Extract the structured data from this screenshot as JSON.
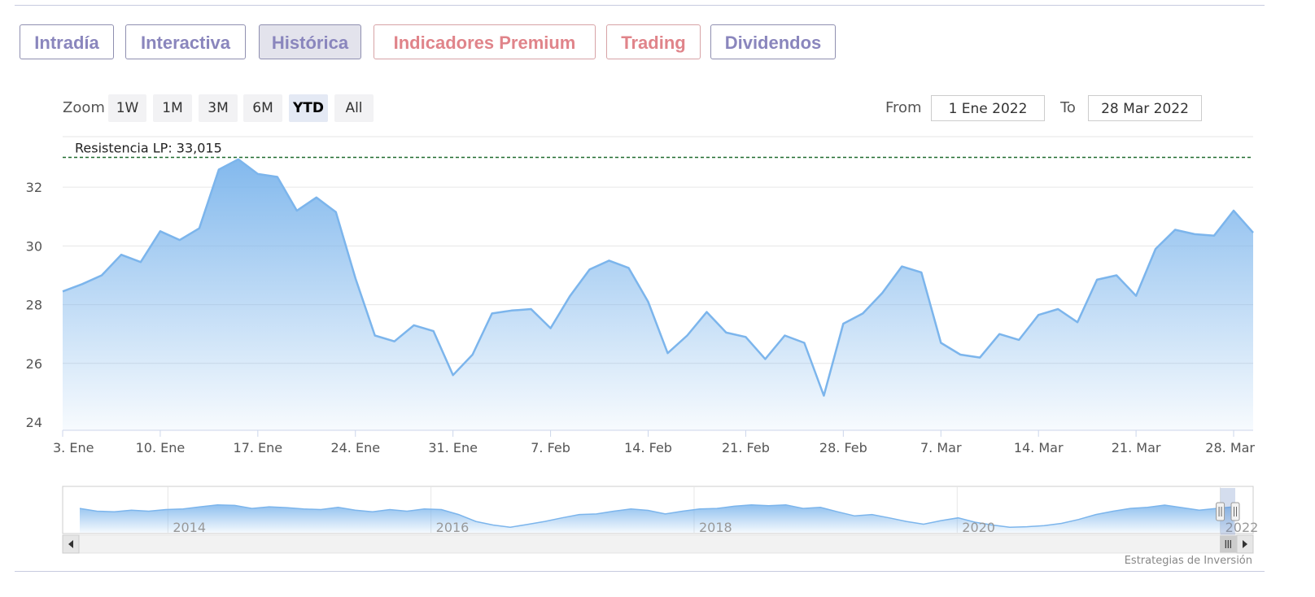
{
  "tabs": [
    {
      "label": "Intradía",
      "style": "normal",
      "active": false
    },
    {
      "label": "Interactiva",
      "style": "normal",
      "active": false
    },
    {
      "label": "Histórica",
      "style": "normal",
      "active": true
    },
    {
      "label": "Indicadores Premium",
      "style": "premium",
      "active": false
    },
    {
      "label": "Trading",
      "style": "premium",
      "active": false
    },
    {
      "label": "Dividendos",
      "style": "normal",
      "active": false
    }
  ],
  "zoom": {
    "label": "Zoom",
    "buttons": [
      "1W",
      "1M",
      "3M",
      "6M",
      "YTD",
      "All"
    ],
    "active": "YTD"
  },
  "range": {
    "from_label": "From",
    "from_value": "1 Ene 2022",
    "to_label": "To",
    "to_value": "28 Mar 2022"
  },
  "credit": "Estrategias de Inversión",
  "colors": {
    "line": "#7cb5ec",
    "resistance": "#1f6b2f",
    "tab_text": "#8a86bd",
    "tab_premium": "#e0848a"
  },
  "chart_data": {
    "type": "area",
    "ylim": [
      24,
      33.5
    ],
    "y_ticks": [
      24,
      26,
      28,
      30,
      32
    ],
    "x_ticks": [
      "3. Ene",
      "10. Ene",
      "17. Ene",
      "24. Ene",
      "31. Ene",
      "7. Feb",
      "14. Feb",
      "21. Feb",
      "28. Feb",
      "7. Mar",
      "14. Mar",
      "21. Mar",
      "28. Mar"
    ],
    "x_tick_index": [
      0,
      5,
      10,
      15,
      20,
      25,
      30,
      35,
      40,
      45,
      50,
      55,
      60
    ],
    "y": [
      28.45,
      28.7,
      29.0,
      29.7,
      29.45,
      30.5,
      30.2,
      30.6,
      32.6,
      32.95,
      32.45,
      32.35,
      31.2,
      31.65,
      31.15,
      28.9,
      26.95,
      26.75,
      27.3,
      27.1,
      25.6,
      26.3,
      27.7,
      27.8,
      27.85,
      27.2,
      28.3,
      29.2,
      29.5,
      29.25,
      28.1,
      26.35,
      26.95,
      27.75,
      27.05,
      26.9,
      26.15,
      26.95,
      26.7,
      24.9,
      27.35,
      27.7,
      28.4,
      29.3,
      29.1,
      26.7,
      26.3,
      26.2,
      27.0,
      26.8,
      27.65,
      27.85,
      27.4,
      28.85,
      29.0,
      28.3,
      29.9,
      30.55,
      30.4,
      30.35,
      31.2,
      30.45
    ],
    "resistance": {
      "label": "Resistencia LP: 33,015",
      "value": 33.015
    },
    "navigator": {
      "labels": [
        "2014",
        "2016",
        "2018",
        "2020",
        "2022"
      ],
      "label_year": [
        2014,
        2016,
        2018,
        2020,
        2022
      ],
      "start_year": 2013.2,
      "end_year": 2022.25,
      "selected_start_year": 2022.0,
      "series": [
        0.82,
        0.72,
        0.7,
        0.76,
        0.72,
        0.78,
        0.8,
        0.88,
        0.95,
        0.93,
        0.82,
        0.88,
        0.85,
        0.8,
        0.78,
        0.86,
        0.76,
        0.7,
        0.78,
        0.72,
        0.8,
        0.78,
        0.6,
        0.35,
        0.22,
        0.14,
        0.24,
        0.35,
        0.48,
        0.6,
        0.62,
        0.72,
        0.8,
        0.75,
        0.62,
        0.72,
        0.8,
        0.82,
        0.9,
        0.95,
        0.92,
        0.95,
        0.82,
        0.86,
        0.7,
        0.55,
        0.6,
        0.48,
        0.35,
        0.25,
        0.38,
        0.48,
        0.32,
        0.22,
        0.14,
        0.16,
        0.2,
        0.28,
        0.42,
        0.6,
        0.72,
        0.82,
        0.86,
        0.94,
        0.85,
        0.76,
        0.82,
        0.88
      ]
    }
  }
}
